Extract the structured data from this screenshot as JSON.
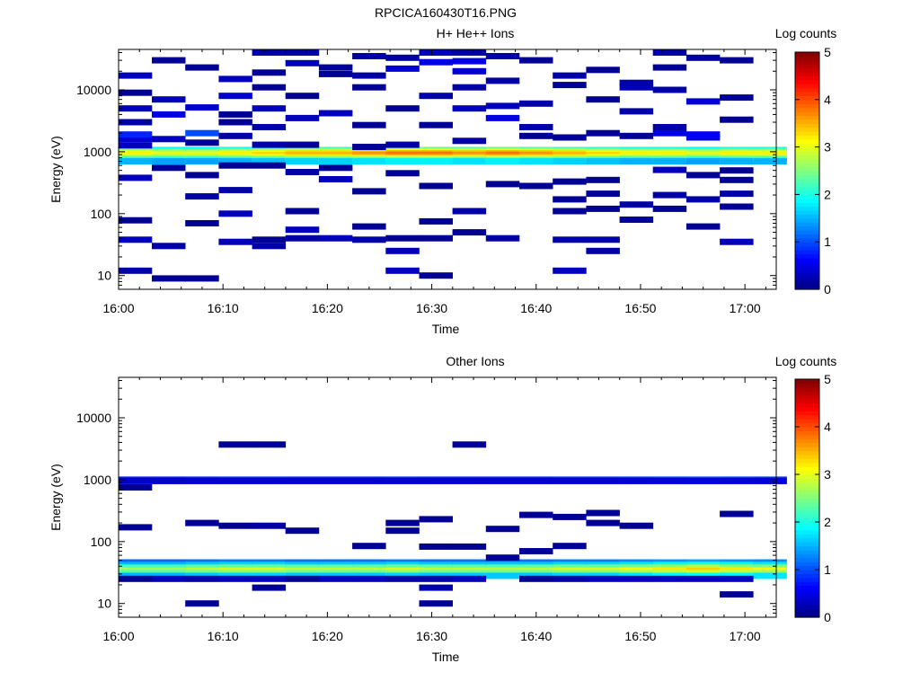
{
  "figure": {
    "title": "RPCICA160430T16.PNG"
  },
  "colors": {
    "axis": "#000000",
    "background": "#ffffff"
  },
  "chart_data": [
    {
      "type": "heatmap",
      "title": "H+ He++ Ions",
      "xlabel": "Time",
      "ylabel": "Energy (eV)",
      "x_ticks": [
        "16:00",
        "16:10",
        "16:20",
        "16:30",
        "16:40",
        "16:50",
        "17:00"
      ],
      "y_ticks": [
        "10",
        "100",
        "1000",
        "10000"
      ],
      "y_scale": "log",
      "ylim": [
        6,
        45000
      ],
      "xlim_minutes": [
        0,
        63
      ],
      "colorbar": {
        "label": "Log counts",
        "ticks": [
          "0",
          "1",
          "2",
          "3",
          "4",
          "5"
        ],
        "range": [
          0,
          5
        ],
        "colormap": "jet"
      },
      "time_bins_minutes": [
        1.6,
        4.8,
        8.0,
        11.2,
        14.4,
        17.6,
        20.8,
        24.0,
        27.2,
        30.4,
        33.6,
        36.8,
        40.0,
        43.2,
        46.4,
        49.6,
        52.8,
        56.0,
        59.2,
        62.4
      ],
      "band": {
        "energies": [
          1070,
          1000,
          940,
          880,
          830,
          780,
          740,
          700
        ],
        "profile": [
          2.0,
          2.6,
          3.0,
          3.2,
          3.0,
          2.6,
          2.1,
          1.5
        ]
      },
      "band_strength": [
        1.0,
        0.95,
        0.95,
        1.0,
        1.05,
        1.1,
        1.1,
        1.15,
        1.2,
        1.2,
        1.15,
        1.2,
        1.15,
        1.1,
        1.05,
        1.0,
        1.0,
        0.95,
        1.0,
        1.0
      ],
      "sparse_cells": [
        [
          0,
          12,
          0.2
        ],
        [
          0,
          38,
          0.3
        ],
        [
          0,
          78,
          0.1
        ],
        [
          0,
          380,
          0.3
        ],
        [
          0,
          1270,
          0.3
        ],
        [
          0,
          1600,
          0.4
        ],
        [
          0,
          1900,
          0.8
        ],
        [
          0,
          3000,
          0.2
        ],
        [
          0,
          5000,
          0.3
        ],
        [
          0,
          9000,
          0.1
        ],
        [
          0,
          17000,
          0.3
        ],
        [
          1,
          9,
          0.1
        ],
        [
          1,
          30,
          0.2
        ],
        [
          1,
          550,
          0.1
        ],
        [
          1,
          1600,
          0.3
        ],
        [
          1,
          4000,
          0.5
        ],
        [
          1,
          7000,
          0.3
        ],
        [
          1,
          30000,
          0.1
        ],
        [
          2,
          9,
          0.1
        ],
        [
          2,
          70,
          0.1
        ],
        [
          2,
          190,
          0.2
        ],
        [
          2,
          420,
          0.1
        ],
        [
          2,
          1400,
          0.1
        ],
        [
          2,
          2000,
          1.0
        ],
        [
          2,
          5200,
          0.4
        ],
        [
          2,
          23000,
          0.1
        ],
        [
          3,
          35,
          0.3
        ],
        [
          3,
          100,
          0.3
        ],
        [
          3,
          240,
          0.2
        ],
        [
          3,
          600,
          0.1
        ],
        [
          3,
          1800,
          0.2
        ],
        [
          3,
          3000,
          0.1
        ],
        [
          3,
          4000,
          0.1
        ],
        [
          3,
          8000,
          0.4
        ],
        [
          3,
          15000,
          0.3
        ],
        [
          4,
          30,
          0.2
        ],
        [
          4,
          38,
          0.1
        ],
        [
          4,
          600,
          0.1
        ],
        [
          4,
          1300,
          0.2
        ],
        [
          4,
          2500,
          0.2
        ],
        [
          4,
          5000,
          0.3
        ],
        [
          4,
          11000,
          0.1
        ],
        [
          4,
          19000,
          0.1
        ],
        [
          4,
          40000,
          0.2
        ],
        [
          5,
          40,
          0.2
        ],
        [
          5,
          55,
          0.3
        ],
        [
          5,
          110,
          0.1
        ],
        [
          5,
          470,
          0.2
        ],
        [
          5,
          1300,
          0.1
        ],
        [
          5,
          3500,
          0.3
        ],
        [
          5,
          8000,
          0.1
        ],
        [
          5,
          27000,
          0.3
        ],
        [
          5,
          40000,
          0.2
        ],
        [
          6,
          40,
          0.3
        ],
        [
          6,
          360,
          0.3
        ],
        [
          6,
          550,
          0.1
        ],
        [
          6,
          4200,
          0.3
        ],
        [
          6,
          18000,
          0.1
        ],
        [
          6,
          23000,
          0.1
        ],
        [
          7,
          38,
          0.2
        ],
        [
          7,
          62,
          0.1
        ],
        [
          7,
          230,
          0.1
        ],
        [
          7,
          1200,
          0.1
        ],
        [
          7,
          2700,
          0.1
        ],
        [
          7,
          11000,
          0.1
        ],
        [
          7,
          17000,
          0.2
        ],
        [
          7,
          35000,
          0.2
        ],
        [
          8,
          12,
          0.3
        ],
        [
          8,
          25,
          0.3
        ],
        [
          8,
          40,
          0.1
        ],
        [
          8,
          450,
          0.1
        ],
        [
          8,
          1300,
          0.2
        ],
        [
          8,
          5000,
          0.1
        ],
        [
          8,
          22000,
          0.4
        ],
        [
          8,
          33000,
          0.2
        ],
        [
          9,
          10,
          0.1
        ],
        [
          9,
          40,
          0.1
        ],
        [
          9,
          75,
          0.1
        ],
        [
          9,
          280,
          0.1
        ],
        [
          9,
          2700,
          0.1
        ],
        [
          9,
          8000,
          0.2
        ],
        [
          9,
          28000,
          0.5
        ],
        [
          9,
          40000,
          0.3
        ],
        [
          10,
          50,
          0.1
        ],
        [
          10,
          110,
          0.2
        ],
        [
          10,
          1500,
          0.2
        ],
        [
          10,
          5000,
          0.3
        ],
        [
          10,
          11000,
          0.2
        ],
        [
          10,
          20000,
          0.4
        ],
        [
          10,
          29000,
          0.5
        ],
        [
          10,
          40000,
          0.2
        ],
        [
          11,
          40,
          0.2
        ],
        [
          11,
          300,
          0.1
        ],
        [
          11,
          3500,
          0.5
        ],
        [
          11,
          5500,
          0.3
        ],
        [
          11,
          14000,
          0.2
        ],
        [
          11,
          35000,
          0.2
        ],
        [
          12,
          280,
          0.1
        ],
        [
          12,
          1800,
          0.1
        ],
        [
          12,
          2500,
          0.2
        ],
        [
          12,
          6000,
          0.2
        ],
        [
          12,
          30000,
          0.1
        ],
        [
          13,
          12,
          0.3
        ],
        [
          13,
          38,
          0.2
        ],
        [
          13,
          110,
          0.1
        ],
        [
          13,
          170,
          0.1
        ],
        [
          13,
          330,
          0.1
        ],
        [
          13,
          1700,
          0.1
        ],
        [
          13,
          12000,
          0.1
        ],
        [
          13,
          17000,
          0.2
        ],
        [
          14,
          25,
          0.2
        ],
        [
          14,
          38,
          0.2
        ],
        [
          14,
          120,
          0.1
        ],
        [
          14,
          210,
          0.1
        ],
        [
          14,
          350,
          0.1
        ],
        [
          14,
          2000,
          0.1
        ],
        [
          14,
          7000,
          0.1
        ],
        [
          14,
          21000,
          0.1
        ],
        [
          15,
          80,
          0.1
        ],
        [
          15,
          140,
          0.2
        ],
        [
          15,
          1800,
          0.1
        ],
        [
          15,
          4500,
          0.2
        ],
        [
          15,
          11000,
          0.3
        ],
        [
          15,
          13000,
          0.2
        ],
        [
          16,
          120,
          0.1
        ],
        [
          16,
          200,
          0.2
        ],
        [
          16,
          510,
          0.3
        ],
        [
          16,
          2000,
          0.5
        ],
        [
          16,
          2500,
          0.2
        ],
        [
          16,
          10000,
          0.2
        ],
        [
          16,
          23000,
          0.1
        ],
        [
          16,
          40000,
          0.2
        ],
        [
          17,
          62,
          0.1
        ],
        [
          17,
          170,
          0.2
        ],
        [
          17,
          420,
          0.1
        ],
        [
          17,
          1700,
          0.5
        ],
        [
          17,
          1900,
          0.6
        ],
        [
          17,
          6500,
          0.4
        ],
        [
          17,
          33000,
          0.2
        ],
        [
          18,
          35,
          0.3
        ],
        [
          18,
          130,
          0.1
        ],
        [
          18,
          210,
          0.2
        ],
        [
          18,
          350,
          0.1
        ],
        [
          18,
          500,
          0.1
        ],
        [
          18,
          3300,
          0.1
        ],
        [
          18,
          7500,
          0.1
        ],
        [
          18,
          30000,
          0.1
        ]
      ]
    },
    {
      "type": "heatmap",
      "title": "Other Ions",
      "xlabel": "Time",
      "ylabel": "Energy (eV)",
      "x_ticks": [
        "16:00",
        "16:10",
        "16:20",
        "16:30",
        "16:40",
        "16:50",
        "17:00"
      ],
      "y_ticks": [
        "10",
        "100",
        "1000",
        "10000"
      ],
      "y_scale": "log",
      "ylim": [
        6,
        45000
      ],
      "xlim_minutes": [
        0,
        63
      ],
      "colorbar": {
        "label": "Log counts",
        "ticks": [
          "0",
          "1",
          "2",
          "3",
          "4",
          "5"
        ],
        "range": [
          0,
          5
        ],
        "colormap": "jet"
      },
      "time_bins_minutes": [
        1.6,
        4.8,
        8.0,
        11.2,
        14.4,
        17.6,
        20.8,
        24.0,
        27.2,
        30.4,
        33.6,
        36.8,
        40.0,
        43.2,
        46.4,
        49.6,
        52.8,
        56.0,
        59.2,
        62.4
      ],
      "band": {
        "energies": [
          46,
          42,
          38,
          34,
          31,
          28
        ],
        "profile": [
          1.2,
          1.6,
          2.3,
          2.8,
          2.4,
          1.6
        ]
      },
      "band_strength": [
        0.95,
        0.95,
        1.0,
        1.05,
        1.05,
        1.0,
        1.0,
        1.0,
        1.05,
        1.0,
        1.0,
        1.0,
        1.0,
        1.05,
        1.05,
        1.1,
        1.15,
        1.2,
        1.15,
        1.1
      ],
      "upper_band": {
        "energies": [
          1000,
          950
        ],
        "profile": [
          0.8,
          0.4
        ]
      },
      "sparse_cells": [
        [
          0,
          25,
          0.1
        ],
        [
          0,
          170,
          0.1
        ],
        [
          0,
          750,
          0.1
        ],
        [
          1,
          25,
          0.3
        ],
        [
          2,
          10,
          0.1
        ],
        [
          2,
          25,
          0.2
        ],
        [
          2,
          200,
          0.1
        ],
        [
          3,
          25,
          0.3
        ],
        [
          3,
          180,
          0.1
        ],
        [
          3,
          3700,
          0.1
        ],
        [
          4,
          18,
          0.1
        ],
        [
          4,
          25,
          0.3
        ],
        [
          4,
          180,
          0.2
        ],
        [
          4,
          3700,
          0.1
        ],
        [
          5,
          25,
          0.1
        ],
        [
          5,
          150,
          0.1
        ],
        [
          6,
          25,
          0.3
        ],
        [
          7,
          25,
          0.3
        ],
        [
          7,
          85,
          0.1
        ],
        [
          8,
          25,
          0.2
        ],
        [
          8,
          150,
          0.1
        ],
        [
          8,
          200,
          0.1
        ],
        [
          9,
          10,
          0.1
        ],
        [
          9,
          18,
          0.2
        ],
        [
          9,
          25,
          0.2
        ],
        [
          9,
          83,
          0.1
        ],
        [
          9,
          230,
          0.1
        ],
        [
          10,
          25,
          0.3
        ],
        [
          10,
          83,
          0.1
        ],
        [
          10,
          3700,
          0.1
        ],
        [
          11,
          55,
          0.1
        ],
        [
          11,
          160,
          0.1
        ],
        [
          12,
          25,
          0.1
        ],
        [
          12,
          70,
          0.1
        ],
        [
          12,
          270,
          0.1
        ],
        [
          13,
          25,
          0.2
        ],
        [
          13,
          85,
          0.1
        ],
        [
          13,
          250,
          0.1
        ],
        [
          14,
          25,
          0.3
        ],
        [
          14,
          200,
          0.1
        ],
        [
          14,
          290,
          0.1
        ],
        [
          15,
          25,
          0.3
        ],
        [
          15,
          180,
          0.1
        ],
        [
          16,
          25,
          0.3
        ],
        [
          17,
          25,
          0.3
        ],
        [
          18,
          14,
          0.1
        ],
        [
          18,
          25,
          0.3
        ],
        [
          18,
          280,
          0.1
        ]
      ]
    }
  ]
}
